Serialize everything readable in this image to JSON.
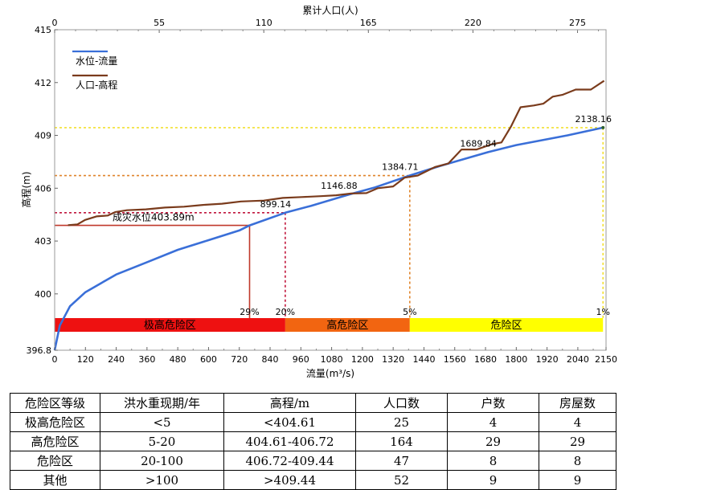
{
  "chart_data": {
    "type": "line",
    "top_axis_title": "累计人口(人)",
    "xlabel": "流量(m³/s)",
    "ylabel": "高程(m)",
    "xlim": [
      0,
      2150
    ],
    "ylim": [
      396.8,
      415
    ],
    "top_xlim": [
      0,
      290
    ],
    "x_ticks": [
      0,
      120,
      240,
      360,
      480,
      600,
      720,
      840,
      960,
      1080,
      1200,
      1320,
      1440,
      1560,
      1680,
      1800,
      1920,
      2040,
      2150
    ],
    "top_ticks": [
      0,
      55,
      110,
      165,
      220,
      275
    ],
    "y_ticks": [
      "396.8",
      "400",
      "403",
      "406",
      "409",
      "412",
      "415"
    ],
    "legend": [
      "水位-流量",
      "人口-高程"
    ],
    "series": [
      {
        "name": "水位-流量",
        "color": "#3a6fd8",
        "axis": "bottom",
        "points": [
          [
            0,
            396.8
          ],
          [
            20,
            398.2
          ],
          [
            60,
            399.3
          ],
          [
            120,
            400.1
          ],
          [
            240,
            401.1
          ],
          [
            360,
            401.8
          ],
          [
            480,
            402.5
          ],
          [
            600,
            403.05
          ],
          [
            720,
            403.6
          ],
          [
            760,
            403.89
          ],
          [
            899.14,
            404.61
          ],
          [
            1000,
            405.0
          ],
          [
            1146.88,
            405.64
          ],
          [
            1250,
            406.05
          ],
          [
            1384.71,
            406.72
          ],
          [
            1500,
            407.25
          ],
          [
            1689.84,
            408.05
          ],
          [
            1800,
            408.45
          ],
          [
            2000,
            409.0
          ],
          [
            2138.16,
            409.44
          ]
        ]
      },
      {
        "name": "人口-高程",
        "color": "#7a3b1c",
        "axis": "top",
        "points": [
          [
            7,
            403.9
          ],
          [
            12,
            403.95
          ],
          [
            16,
            404.2
          ],
          [
            22,
            404.4
          ],
          [
            28,
            404.45
          ],
          [
            32,
            404.65
          ],
          [
            38,
            404.75
          ],
          [
            48,
            404.8
          ],
          [
            58,
            404.9
          ],
          [
            68,
            404.95
          ],
          [
            78,
            405.05
          ],
          [
            88,
            405.12
          ],
          [
            98,
            405.25
          ],
          [
            110,
            405.3
          ],
          [
            120,
            405.45
          ],
          [
            130,
            405.5
          ],
          [
            140,
            405.55
          ],
          [
            148,
            405.6
          ],
          [
            156,
            405.7
          ],
          [
            164,
            405.72
          ],
          [
            170,
            406.0
          ],
          [
            178,
            406.1
          ],
          [
            184,
            406.6
          ],
          [
            191,
            406.72
          ],
          [
            200,
            407.2
          ],
          [
            207,
            407.4
          ],
          [
            214,
            408.2
          ],
          [
            222,
            408.2
          ],
          [
            230,
            408.5
          ],
          [
            235,
            408.6
          ],
          [
            240,
            409.5
          ],
          [
            245,
            410.6
          ],
          [
            252,
            410.7
          ],
          [
            257,
            410.8
          ],
          [
            262,
            411.2
          ],
          [
            267,
            411.3
          ],
          [
            274,
            411.6
          ],
          [
            282,
            411.6
          ],
          [
            289,
            412.1
          ]
        ]
      }
    ],
    "point_labels": [
      {
        "x": 899.14,
        "y": 404.61,
        "text": "899.14"
      },
      {
        "x": 1146.88,
        "y": 405.64,
        "text": "1146.88"
      },
      {
        "x": 1384.71,
        "y": 406.72,
        "text": "1384.71"
      },
      {
        "x": 1689.84,
        "y": 408.05,
        "text": "1689.84"
      },
      {
        "x": 2138.16,
        "y": 409.44,
        "text": "2138.16"
      }
    ],
    "reference_lines": [
      {
        "x": 760,
        "y": 403.89,
        "color": "#c0392b",
        "style": "solid",
        "label": "29%",
        "level_label": "成灾水位403.89m"
      },
      {
        "x": 899.14,
        "y": 404.61,
        "color": "#c0163c",
        "style": "dotted",
        "label": "20%"
      },
      {
        "x": 1384.71,
        "y": 406.72,
        "color": "#e0842a",
        "style": "dotted",
        "label": "5%"
      },
      {
        "x": 2138.16,
        "y": 409.44,
        "color": "#f2e030",
        "style": "dotted",
        "label": "1%"
      }
    ],
    "zones": [
      {
        "label": "极高危险区",
        "x_start": 0,
        "x_end": 899.14,
        "color": "#ee1111"
      },
      {
        "label": "高危险区",
        "x_start": 899.14,
        "x_end": 1384.71,
        "color": "#f26511"
      },
      {
        "label": "危险区",
        "x_start": 1384.71,
        "x_end": 2138.16,
        "color": "#ffff00"
      }
    ]
  },
  "table": {
    "headers": [
      "危险区等级",
      "洪水重现期/年",
      "高程/m",
      "人口数",
      "户数",
      "房屋数"
    ],
    "rows": [
      [
        "极高危险区",
        "<5",
        "<404.61",
        "25",
        "4",
        "4"
      ],
      [
        "高危险区",
        "5-20",
        "404.61-406.72",
        "164",
        "29",
        "29"
      ],
      [
        "危险区",
        "20-100",
        "406.72-409.44",
        "47",
        "8",
        "8"
      ],
      [
        "其他",
        ">100",
        ">409.44",
        "52",
        "9",
        "9"
      ]
    ]
  }
}
